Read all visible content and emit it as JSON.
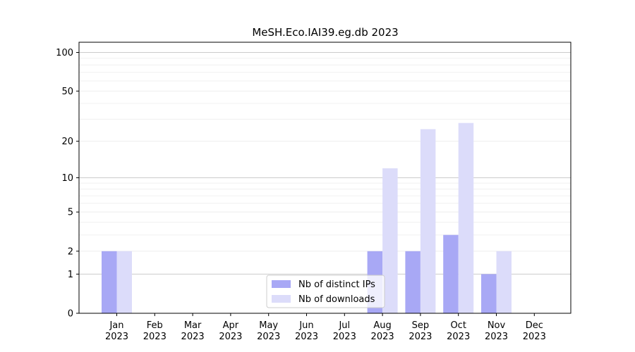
{
  "chart_data": {
    "type": "bar",
    "title": "MeSH.Eco.IAI39.eg.db 2023",
    "xlabel": "",
    "ylabel": "",
    "categories": [
      [
        "Jan",
        "2023"
      ],
      [
        "Feb",
        "2023"
      ],
      [
        "Mar",
        "2023"
      ],
      [
        "Apr",
        "2023"
      ],
      [
        "May",
        "2023"
      ],
      [
        "Jun",
        "2023"
      ],
      [
        "Jul",
        "2023"
      ],
      [
        "Aug",
        "2023"
      ],
      [
        "Sep",
        "2023"
      ],
      [
        "Oct",
        "2023"
      ],
      [
        "Nov",
        "2023"
      ],
      [
        "Dec",
        "2023"
      ]
    ],
    "series": [
      {
        "name": "Nb of distinct IPs",
        "color": "#a8a8f5",
        "values": [
          2,
          0,
          0,
          0,
          0,
          0,
          0,
          2,
          2,
          3,
          1,
          0
        ]
      },
      {
        "name": "Nb of downloads",
        "color": "#dcdcfa",
        "values": [
          2,
          0,
          0,
          0,
          0,
          0,
          0,
          12,
          25,
          28,
          2,
          0
        ]
      }
    ],
    "y_scale": "log(1+y)",
    "ylim": [
      0,
      120
    ],
    "yticks": [
      0,
      1,
      2,
      5,
      10,
      20,
      50,
      100
    ],
    "grid": true,
    "legend_position": "bottom-center"
  }
}
